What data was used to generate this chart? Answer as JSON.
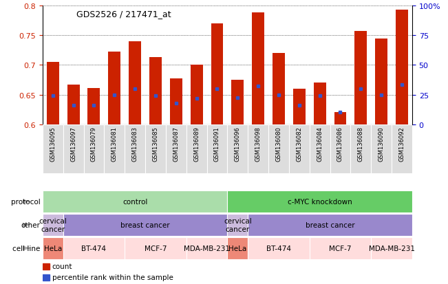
{
  "title": "GDS2526 / 217471_at",
  "samples": [
    "GSM136095",
    "GSM136097",
    "GSM136079",
    "GSM136081",
    "GSM136083",
    "GSM136085",
    "GSM136087",
    "GSM136089",
    "GSM136091",
    "GSM136096",
    "GSM136098",
    "GSM136080",
    "GSM136082",
    "GSM136084",
    "GSM136086",
    "GSM136088",
    "GSM136090",
    "GSM136092"
  ],
  "bar_heights": [
    0.705,
    0.667,
    0.661,
    0.722,
    0.74,
    0.713,
    0.677,
    0.7,
    0.77,
    0.675,
    0.788,
    0.72,
    0.66,
    0.67,
    0.62,
    0.757,
    0.745,
    0.793
  ],
  "bar_base": 0.6,
  "blue_markers": [
    0.648,
    0.632,
    0.632,
    0.65,
    0.66,
    0.648,
    0.636,
    0.644,
    0.66,
    0.645,
    0.665,
    0.65,
    0.632,
    0.648,
    0.62,
    0.66,
    0.65,
    0.667
  ],
  "ylim": [
    0.6,
    0.8
  ],
  "yticks": [
    0.6,
    0.65,
    0.7,
    0.75,
    0.8
  ],
  "right_yticks": [
    0,
    25,
    50,
    75,
    100
  ],
  "right_ytick_labels": [
    "0",
    "25",
    "50",
    "75",
    "100%"
  ],
  "bar_color": "#cc2200",
  "blue_color": "#3355cc",
  "protocol_groups": [
    {
      "label": "control",
      "start": 0,
      "end": 9,
      "color": "#aaddaa"
    },
    {
      "label": "c-MYC knockdown",
      "start": 9,
      "end": 18,
      "color": "#66cc66"
    }
  ],
  "other_groups": [
    {
      "label": "cervical\ncancer",
      "start": 0,
      "end": 1,
      "color": "#ccbbdd"
    },
    {
      "label": "breast cancer",
      "start": 1,
      "end": 9,
      "color": "#9988cc"
    },
    {
      "label": "cervical\ncancer",
      "start": 9,
      "end": 10,
      "color": "#ccbbdd"
    },
    {
      "label": "breast cancer",
      "start": 10,
      "end": 18,
      "color": "#9988cc"
    }
  ],
  "cell_line_groups": [
    {
      "label": "HeLa",
      "start": 0,
      "end": 1,
      "color": "#ee8877"
    },
    {
      "label": "BT-474",
      "start": 1,
      "end": 4,
      "color": "#ffdddd"
    },
    {
      "label": "MCF-7",
      "start": 4,
      "end": 7,
      "color": "#ffdddd"
    },
    {
      "label": "MDA-MB-231",
      "start": 7,
      "end": 9,
      "color": "#ffdddd"
    },
    {
      "label": "HeLa",
      "start": 9,
      "end": 10,
      "color": "#ee8877"
    },
    {
      "label": "BT-474",
      "start": 10,
      "end": 13,
      "color": "#ffdddd"
    },
    {
      "label": "MCF-7",
      "start": 13,
      "end": 16,
      "color": "#ffdddd"
    },
    {
      "label": "MDA-MB-231",
      "start": 16,
      "end": 18,
      "color": "#ffdddd"
    }
  ],
  "row_labels": [
    "protocol",
    "other",
    "cell line"
  ],
  "bg_color": "#ffffff",
  "tick_color_left": "#cc2200",
  "tick_color_right": "#0000cc",
  "xtick_bg": "#dddddd"
}
